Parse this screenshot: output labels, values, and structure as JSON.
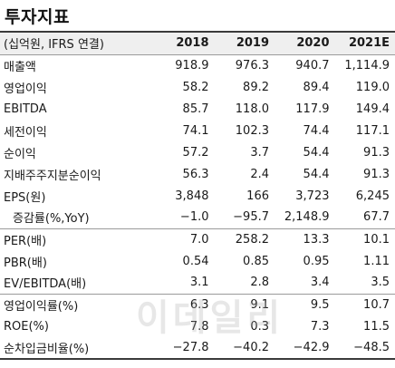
{
  "title": "투자지표",
  "header": [
    "(십억원, IFRS 연결)",
    "2018",
    "2019",
    "2020",
    "2021E"
  ],
  "rows": [
    {
      "label": "매출액",
      "values": [
        "918.9",
        "976.3",
        "940.7",
        "1,114.9"
      ]
    },
    {
      "label": "영업이익",
      "values": [
        "58.2",
        "89.2",
        "89.4",
        "119.0"
      ]
    },
    {
      "label": "EBITDA",
      "values": [
        "85.7",
        "118.0",
        "117.9",
        "149.4"
      ]
    },
    {
      "label": "세전이익",
      "values": [
        "74.1",
        "102.3",
        "74.4",
        "117.1"
      ]
    },
    {
      "label": "순이익",
      "values": [
        "57.2",
        "3.7",
        "54.4",
        "91.3"
      ]
    },
    {
      "label": "지배주주지분순이익",
      "values": [
        "56.3",
        "2.4",
        "54.4",
        "91.3"
      ]
    },
    {
      "label": "EPS(원)",
      "values": [
        "3,848",
        "166",
        "3,723",
        "6,245"
      ]
    },
    {
      "label": "증감률(%,YoY)",
      "values": [
        "−1.0",
        "−95.7",
        "2,148.9",
        "67.7"
      ]
    },
    {
      "label": "PER(배)",
      "values": [
        "7.0",
        "258.2",
        "13.3",
        "10.1"
      ]
    },
    {
      "label": "PBR(배)",
      "values": [
        "0.54",
        "0.85",
        "0.95",
        "1.11"
      ]
    },
    {
      "label": "EV/EBITDA(배)",
      "values": [
        "3.1",
        "2.8",
        "3.4",
        "3.5"
      ]
    },
    {
      "label": "영업이익률(%)",
      "values": [
        "6.3",
        "9.1",
        "9.5",
        "10.7"
      ]
    },
    {
      "label": "ROE(%)",
      "values": [
        "7.8",
        "0.3",
        "7.3",
        "11.5"
      ]
    },
    {
      "label": "순차입금비율(%)",
      "values": [
        "−27.8",
        "−40.2",
        "−42.9",
        "−48.5"
      ]
    }
  ],
  "watermark": "이데일리"
}
